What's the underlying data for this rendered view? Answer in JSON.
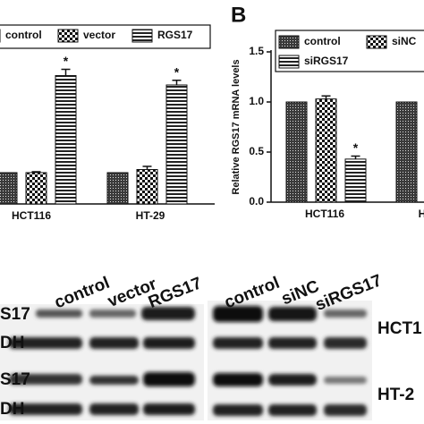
{
  "chart_data": [
    {
      "type": "bar",
      "categories": [
        "HCT116",
        "HT-29"
      ],
      "series": [
        {
          "name": "control",
          "color": "#3a3a3a",
          "values": [
            1.0,
            1.0
          ]
        },
        {
          "name": "vector",
          "color": "#111111",
          "values": [
            1.0,
            1.1
          ],
          "errors": [
            0.03,
            0.1
          ]
        },
        {
          "name": "RGS17",
          "color": "#222222",
          "values": [
            4.1,
            3.8
          ],
          "errors": [
            0.2,
            0.15
          ]
        }
      ],
      "annotations": [
        "*",
        "*"
      ],
      "ylim": [
        0,
        5
      ]
    },
    {
      "type": "bar",
      "y_label": "Relative RGS17 mRNA levels",
      "categories": [
        "HCT116",
        "H"
      ],
      "series": [
        {
          "name": "control",
          "color": "#3a3a3a",
          "values": [
            1.0,
            1.0
          ]
        },
        {
          "name": "siNC",
          "color": "#111111",
          "values": [
            1.03,
            null
          ],
          "errors": [
            0.03,
            null
          ]
        },
        {
          "name": "siRGS17",
          "color": "#222222",
          "values": [
            0.43,
            null
          ],
          "errors": [
            0.03,
            null
          ]
        }
      ],
      "annotations": [
        "*"
      ],
      "ylim": [
        0,
        1.5
      ],
      "yticks": [
        {
          "value": 0,
          "label": "0.0"
        },
        0.5,
        {
          "value": 1,
          "label": "1.0"
        },
        1.5
      ]
    }
  ],
  "panel_label": "B",
  "blot": {
    "lanes_left": [
      "control",
      "vector",
      "RGS17"
    ],
    "lanes_right": [
      "control",
      "siNC",
      "siRGS17"
    ],
    "rows": [
      "S17",
      "DH",
      "S17",
      "DH"
    ],
    "cell_lines": [
      "HCT1",
      "HT-2"
    ]
  }
}
